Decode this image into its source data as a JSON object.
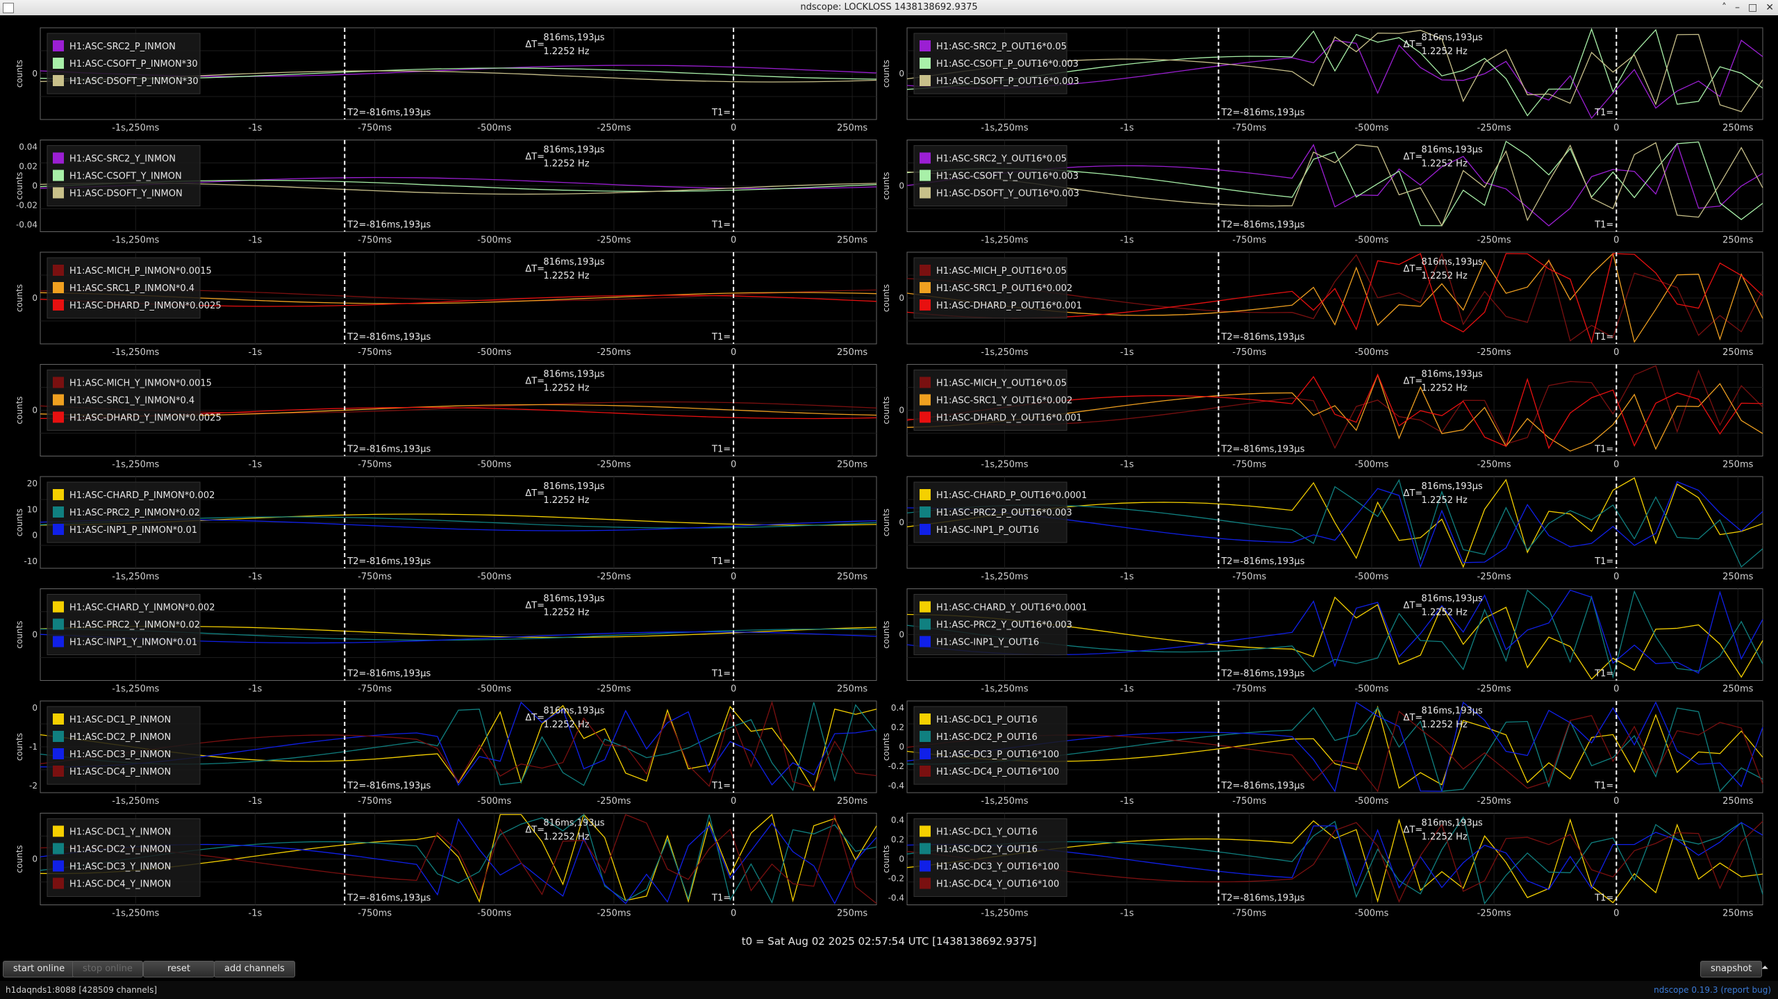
{
  "window": {
    "title": "ndscope: LOCKLOSS 1438138692.9375"
  },
  "cursors": {
    "T2": "T2=-816ms,193µs",
    "T1": "T1=",
    "dT_label": "ΔT=",
    "dT_value": "816ms,193µs",
    "dT_freq": "1.2252 Hz"
  },
  "xticks_a": [
    "-1s,250ms",
    "-1s",
    "-750ms",
    "-500ms",
    "-250ms",
    "0",
    "250ms"
  ],
  "ylabel": "counts",
  "plots": [
    {
      "id": "r1l",
      "ticks": [
        "0"
      ],
      "legend": [
        [
          "H1:ASC-SRC2_P_INMON",
          "#9b1fd3"
        ],
        [
          "H1:ASC-CSOFT_P_INMON*30",
          "#a8f0a8"
        ],
        [
          "H1:ASC-DSOFT_P_INMON*30",
          "#c8c08a"
        ]
      ]
    },
    {
      "id": "r1r",
      "ticks": [
        "0"
      ],
      "legend": [
        [
          "H1:ASC-SRC2_P_OUT16*0.05",
          "#9b1fd3"
        ],
        [
          "H1:ASC-CSOFT_P_OUT16*0.003",
          "#a8f0a8"
        ],
        [
          "H1:ASC-DSOFT_P_OUT16*0.003",
          "#c8c08a"
        ]
      ]
    },
    {
      "id": "r2l",
      "ticks": [
        "0.04",
        "0.02",
        "0",
        "-0.02",
        "-0.04"
      ],
      "legend": [
        [
          "H1:ASC-SRC2_Y_INMON",
          "#9b1fd3"
        ],
        [
          "H1:ASC-CSOFT_Y_INMON",
          "#a8f0a8"
        ],
        [
          "H1:ASC-DSOFT_Y_INMON",
          "#c8c08a"
        ]
      ]
    },
    {
      "id": "r2r",
      "ticks": [
        "0"
      ],
      "legend": [
        [
          "H1:ASC-SRC2_Y_OUT16*0.05",
          "#9b1fd3"
        ],
        [
          "H1:ASC-CSOFT_Y_OUT16*0.003",
          "#a8f0a8"
        ],
        [
          "H1:ASC-DSOFT_Y_OUT16*0.003",
          "#c8c08a"
        ]
      ]
    },
    {
      "id": "r3l",
      "ticks": [
        "0"
      ],
      "legend": [
        [
          "H1:ASC-MICH_P_INMON*0.0015",
          "#7a1010"
        ],
        [
          "H1:ASC-SRC1_P_INMON*0.4",
          "#f0a020"
        ],
        [
          "H1:ASC-DHARD_P_INMON*0.0025",
          "#e81010"
        ]
      ]
    },
    {
      "id": "r3r",
      "ticks": [
        "0"
      ],
      "legend": [
        [
          "H1:ASC-MICH_P_OUT16*0.05",
          "#7a1010"
        ],
        [
          "H1:ASC-SRC1_P_OUT16*0.002",
          "#f0a020"
        ],
        [
          "H1:ASC-DHARD_P_OUT16*0.001",
          "#e81010"
        ]
      ]
    },
    {
      "id": "r4l",
      "ticks": [
        "0"
      ],
      "legend": [
        [
          "H1:ASC-MICH_Y_INMON*0.0015",
          "#7a1010"
        ],
        [
          "H1:ASC-SRC1_Y_INMON*0.4",
          "#f0a020"
        ],
        [
          "H1:ASC-DHARD_Y_INMON*0.0025",
          "#e81010"
        ]
      ]
    },
    {
      "id": "r4r",
      "ticks": [
        "0"
      ],
      "legend": [
        [
          "H1:ASC-MICH_Y_OUT16*0.05",
          "#7a1010"
        ],
        [
          "H1:ASC-SRC1_Y_OUT16*0.002",
          "#f0a020"
        ],
        [
          "H1:ASC-DHARD_Y_OUT16*0.001",
          "#e81010"
        ]
      ]
    },
    {
      "id": "r5l",
      "ticks": [
        "20",
        "10",
        "0",
        "-10"
      ],
      "legend": [
        [
          "H1:ASC-CHARD_P_INMON*0.002",
          "#f5d000"
        ],
        [
          "H1:ASC-PRC2_P_INMON*0.02",
          "#108080"
        ],
        [
          "H1:ASC-INP1_P_INMON*0.01",
          "#1020e8"
        ]
      ]
    },
    {
      "id": "r5r",
      "ticks": [
        "0"
      ],
      "legend": [
        [
          "H1:ASC-CHARD_P_OUT16*0.0001",
          "#f5d000"
        ],
        [
          "H1:ASC-PRC2_P_OUT16*0.003",
          "#108080"
        ],
        [
          "H1:ASC-INP1_P_OUT16",
          "#1020e8"
        ]
      ]
    },
    {
      "id": "r6l",
      "ticks": [
        "0"
      ],
      "legend": [
        [
          "H1:ASC-CHARD_Y_INMON*0.002",
          "#f5d000"
        ],
        [
          "H1:ASC-PRC2_Y_INMON*0.02",
          "#108080"
        ],
        [
          "H1:ASC-INP1_Y_INMON*0.01",
          "#1020e8"
        ]
      ]
    },
    {
      "id": "r6r",
      "ticks": [
        "0"
      ],
      "legend": [
        [
          "H1:ASC-CHARD_Y_OUT16*0.0001",
          "#f5d000"
        ],
        [
          "H1:ASC-PRC2_Y_OUT16*0.003",
          "#108080"
        ],
        [
          "H1:ASC-INP1_Y_OUT16",
          "#1020e8"
        ]
      ]
    },
    {
      "id": "r7l",
      "ticks": [
        "0",
        "-1",
        "-2"
      ],
      "legend": [
        [
          "H1:ASC-DC1_P_INMON",
          "#f5d000"
        ],
        [
          "H1:ASC-DC2_P_INMON",
          "#108080"
        ],
        [
          "H1:ASC-DC3_P_INMON",
          "#1020e8"
        ],
        [
          "H1:ASC-DC4_P_INMON",
          "#7a1010"
        ]
      ]
    },
    {
      "id": "r7r",
      "ticks": [
        "0.4",
        "0.2",
        "0",
        "-0.2",
        "-0.4"
      ],
      "legend": [
        [
          "H1:ASC-DC1_P_OUT16",
          "#f5d000"
        ],
        [
          "H1:ASC-DC2_P_OUT16",
          "#108080"
        ],
        [
          "H1:ASC-DC3_P_OUT16*100",
          "#1020e8"
        ],
        [
          "H1:ASC-DC4_P_OUT16*100",
          "#7a1010"
        ]
      ]
    },
    {
      "id": "r8l",
      "ticks": [
        "0"
      ],
      "legend": [
        [
          "H1:ASC-DC1_Y_INMON",
          "#f5d000"
        ],
        [
          "H1:ASC-DC2_Y_INMON",
          "#108080"
        ],
        [
          "H1:ASC-DC3_Y_INMON",
          "#1020e8"
        ],
        [
          "H1:ASC-DC4_Y_INMON",
          "#7a1010"
        ]
      ]
    },
    {
      "id": "r8r",
      "ticks": [
        "0.4",
        "0.2",
        "0",
        "-0.2",
        "-0.4"
      ],
      "legend": [
        [
          "H1:ASC-DC1_Y_OUT16",
          "#f5d000"
        ],
        [
          "H1:ASC-DC2_Y_OUT16",
          "#108080"
        ],
        [
          "H1:ASC-DC3_Y_OUT16*100",
          "#1020e8"
        ],
        [
          "H1:ASC-DC4_Y_OUT16*100",
          "#7a1010"
        ]
      ]
    }
  ],
  "t0_label": "t0 = Sat Aug 02 2025 02:57:54 UTC [1438138692.9375]",
  "buttons": {
    "start_online": "start online",
    "stop_online": "stop online",
    "reset": "reset",
    "add_channels": "add channels",
    "snapshot": "snapshot"
  },
  "status": {
    "server": "h1daqnds1:8088  [428509 channels]",
    "version": "ndscope 0.19.3",
    "report": "(report bug)"
  }
}
